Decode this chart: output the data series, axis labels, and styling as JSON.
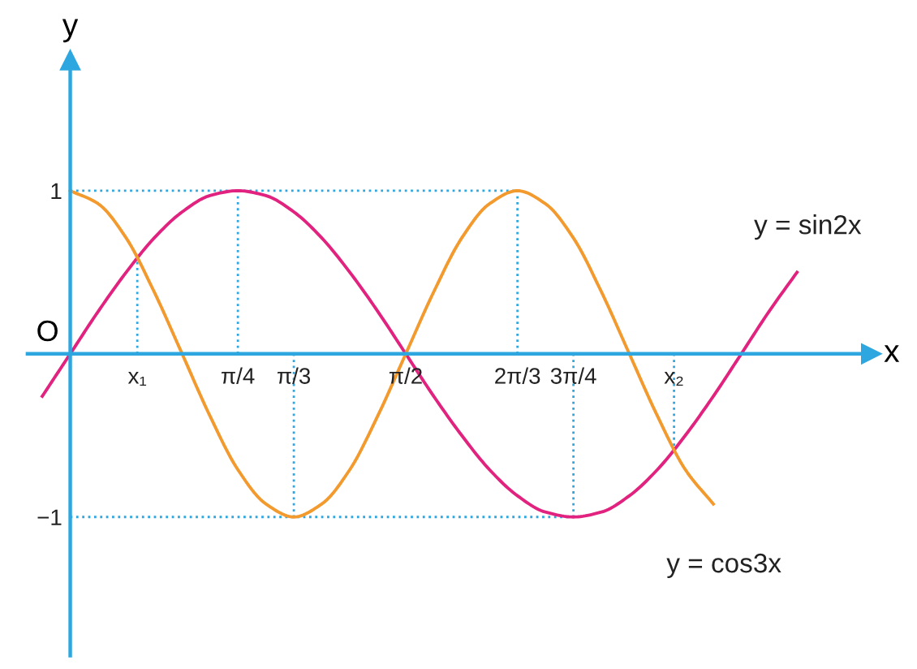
{
  "chart_data": {
    "type": "line",
    "xlabel": "x",
    "ylabel": "y",
    "series": [
      {
        "name": "y = sin2x",
        "color": "#e2227f",
        "x": [
          -0.131,
          0,
          0.131,
          0.262,
          0.393,
          0.524,
          0.654,
          0.785,
          0.916,
          1.047,
          1.178,
          1.309,
          1.44,
          1.571,
          1.702,
          1.833,
          1.963,
          2.094,
          2.225,
          2.356,
          2.487,
          2.618,
          2.749,
          2.88,
          3.011,
          3.142,
          3.272,
          3.403
        ],
        "values": [
          -0.26,
          0,
          0.26,
          0.5,
          0.71,
          0.87,
          0.97,
          1,
          0.97,
          0.87,
          0.71,
          0.5,
          0.26,
          0,
          -0.26,
          -0.5,
          -0.71,
          -0.87,
          -0.97,
          -1,
          -0.97,
          -0.87,
          -0.71,
          -0.5,
          -0.26,
          0,
          0.26,
          0.5
        ]
      },
      {
        "name": "y = cos3x",
        "color": "#f39a2e",
        "x": [
          0,
          0.131,
          0.262,
          0.393,
          0.524,
          0.654,
          0.785,
          0.916,
          1.047,
          1.178,
          1.309,
          1.44,
          1.571,
          1.702,
          1.833,
          1.963,
          2.094,
          2.225,
          2.356,
          2.487,
          2.618,
          2.749,
          2.88,
          3.011
        ],
        "values": [
          1,
          0.92,
          0.71,
          0.38,
          0,
          -0.38,
          -0.71,
          -0.92,
          -1,
          -0.92,
          -0.71,
          -0.38,
          0,
          0.38,
          0.71,
          0.92,
          1,
          0.92,
          0.71,
          0.38,
          0,
          -0.38,
          -0.71,
          -0.92
        ]
      }
    ],
    "xlim": [
      -0.2,
      3.75
    ],
    "ylim": [
      -1.85,
      1.8
    ],
    "xticks": [
      {
        "value": 0.314,
        "label": "x₁"
      },
      {
        "value": 0.785,
        "label": "π/4"
      },
      {
        "value": 1.047,
        "label": "π/3"
      },
      {
        "value": 1.571,
        "label": "π/2"
      },
      {
        "value": 2.094,
        "label": "2π/3"
      },
      {
        "value": 2.356,
        "label": "3π/4"
      },
      {
        "value": 2.827,
        "label": "x₂"
      }
    ],
    "yticks": [
      {
        "value": 1,
        "label": "1"
      },
      {
        "value": -1,
        "label": "−1"
      }
    ],
    "ref_lines": [
      {
        "axis": "x",
        "value": 0.314,
        "color": "#2ea7e0",
        "line_style": "dotted"
      },
      {
        "axis": "x",
        "value": 0.785,
        "color": "#2ea7e0",
        "line_style": "dotted"
      },
      {
        "axis": "x",
        "value": 1.047,
        "color": "#2ea7e0",
        "line_style": "dotted"
      },
      {
        "axis": "x",
        "value": 2.094,
        "color": "#2ea7e0",
        "line_style": "dotted"
      },
      {
        "axis": "x",
        "value": 2.356,
        "color": "#2ea7e0",
        "line_style": "dotted"
      },
      {
        "axis": "x",
        "value": 2.827,
        "color": "#2ea7e0",
        "line_style": "dotted"
      },
      {
        "axis": "y",
        "value": 1,
        "color": "#2ea7e0",
        "line_style": "dotted"
      },
      {
        "axis": "y",
        "value": -1,
        "color": "#2ea7e0",
        "line_style": "dotted"
      }
    ],
    "annotations": [
      "O"
    ],
    "grid": false,
    "legend": false,
    "marker": "none",
    "line_style": "solid"
  }
}
